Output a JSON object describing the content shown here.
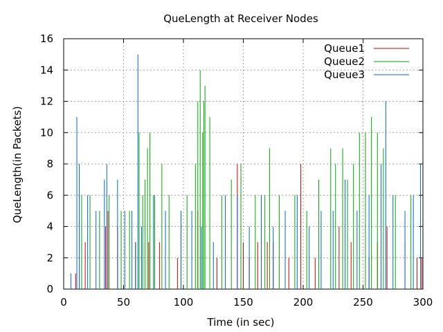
{
  "chart_data": {
    "type": "line",
    "title": "QueLength at Receiver Nodes",
    "xlabel": "Time (in sec)",
    "ylabel": "QueLength(in Packets)",
    "xlim": [
      0,
      300
    ],
    "ylim": [
      0,
      16
    ],
    "xticks": [
      0,
      50,
      100,
      150,
      200,
      250,
      300
    ],
    "yticks": [
      0,
      2,
      4,
      6,
      8,
      10,
      12,
      14,
      16
    ],
    "grid": true,
    "legend_position": "top-right",
    "series": [
      {
        "name": "Queue1",
        "color": "#cc0000",
        "x": [
          10,
          18,
          35,
          37,
          45,
          60,
          71,
          80,
          95,
          112,
          128,
          145,
          150,
          155,
          162,
          170,
          175,
          188,
          198,
          210,
          230,
          240,
          255,
          262,
          270,
          285,
          295,
          299
        ],
        "y": [
          1,
          3,
          4,
          5,
          4,
          3,
          3,
          3,
          2,
          5,
          2,
          8,
          3,
          2,
          3,
          3,
          3,
          2,
          8,
          2,
          4,
          3,
          2,
          3,
          4,
          3,
          2,
          2
        ]
      },
      {
        "name": "Queue2",
        "color": "#00aa00",
        "x": [
          15,
          22,
          30,
          38,
          48,
          55,
          63,
          66,
          68,
          70,
          72,
          76,
          82,
          88,
          98,
          103,
          110,
          112,
          114,
          116,
          117,
          118,
          122,
          132,
          140,
          148,
          160,
          168,
          172,
          180,
          193,
          203,
          213,
          223,
          227,
          233,
          237,
          242,
          247,
          252,
          257,
          262,
          267,
          277,
          290
        ],
        "y": [
          6,
          6,
          5,
          6,
          5,
          5,
          10,
          6,
          7,
          9,
          10,
          6,
          8,
          6,
          5,
          6,
          8,
          12,
          14,
          10,
          12,
          13,
          11,
          6,
          7,
          8,
          6,
          6,
          9,
          6,
          6,
          5,
          7,
          9,
          8,
          9,
          7,
          8,
          10,
          10,
          11,
          10,
          9,
          6,
          6
        ]
      },
      {
        "name": "Queue3",
        "color": "#0066cc",
        "x": [
          6,
          11,
          13,
          20,
          27,
          34,
          36,
          45,
          51,
          57,
          60,
          62,
          65,
          75,
          85,
          98,
          107,
          115,
          125,
          135,
          145,
          155,
          165,
          175,
          185,
          195,
          205,
          215,
          225,
          235,
          245,
          255,
          265,
          269,
          275,
          285,
          292,
          298
        ],
        "y": [
          1,
          11,
          8,
          6,
          5,
          7,
          8,
          7,
          5,
          5,
          3,
          15,
          4,
          6,
          5,
          5,
          5,
          4,
          3,
          6,
          6,
          4,
          6,
          4,
          5,
          6,
          4,
          5,
          5,
          7,
          5,
          6,
          8,
          12,
          6,
          5,
          6,
          8
        ]
      }
    ]
  }
}
